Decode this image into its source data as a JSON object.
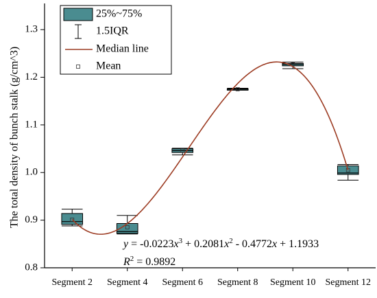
{
  "chart_data": {
    "type": "box",
    "y_label": "The total density of bunch stalk (g/cm^3)",
    "categories": [
      "Segment 2",
      "Segment 4",
      "Segment 6",
      "Segment 8",
      "Segment 10",
      "Segment 12"
    ],
    "whisker_high": [
      0.923,
      0.91,
      1.051,
      1.177,
      1.232,
      1.017
    ],
    "q3": [
      0.914,
      0.893,
      1.05,
      1.176,
      1.229,
      1.014
    ],
    "median": [
      0.897,
      0.876,
      1.046,
      1.175,
      1.227,
      0.999
    ],
    "q1": [
      0.891,
      0.872,
      1.042,
      1.173,
      1.224,
      0.996
    ],
    "whisker_low": [
      0.888,
      0.871,
      1.037,
      1.173,
      1.218,
      0.984
    ],
    "mean": [
      0.901,
      0.885,
      1.046,
      1.175,
      1.227,
      1.005
    ],
    "box_color": "#4a8c90",
    "curve_color": "#9c3b22",
    "ylim": [
      0.8,
      1.355
    ],
    "yticks": [
      0.8,
      0.9,
      {
        "value": 1,
        "label": "1.0"
      },
      1.1,
      1.2,
      1.3
    ],
    "legend": [
      "25%~75%",
      "1.5IQR",
      "Median line",
      "Mean"
    ],
    "fit": {
      "coefficients": [
        -0.0223,
        0.2081,
        -0.4772,
        1.1933
      ],
      "equation": [
        "y",
        " = -0.0223",
        "x",
        "3",
        " + 0.2081",
        "x",
        "2",
        " - 0.4772",
        "x",
        " + 1.1933"
      ],
      "r2_label": [
        "R",
        "2",
        " = 0.9892"
      ]
    }
  }
}
